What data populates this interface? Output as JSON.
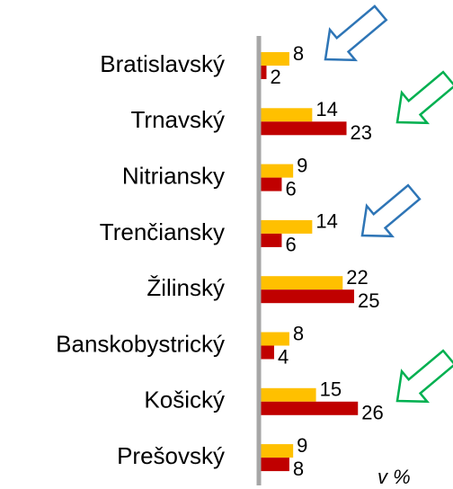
{
  "chart_data": {
    "type": "hbar",
    "categories": [
      "Bratislavský",
      "Trnavský",
      "Nitriansky",
      "Trenčiansky",
      "Žilinský",
      "Banskobystrický",
      "Košický",
      "Prešovský"
    ],
    "series": [
      {
        "color": "#ffc000",
        "values": [
          8,
          14,
          9,
          14,
          22,
          8,
          15,
          9
        ]
      },
      {
        "color": "#c00000",
        "values": [
          2,
          23,
          6,
          6,
          25,
          4,
          26,
          8
        ]
      }
    ],
    "xlim": [
      0,
      50
    ],
    "annotation": "v %"
  }
}
